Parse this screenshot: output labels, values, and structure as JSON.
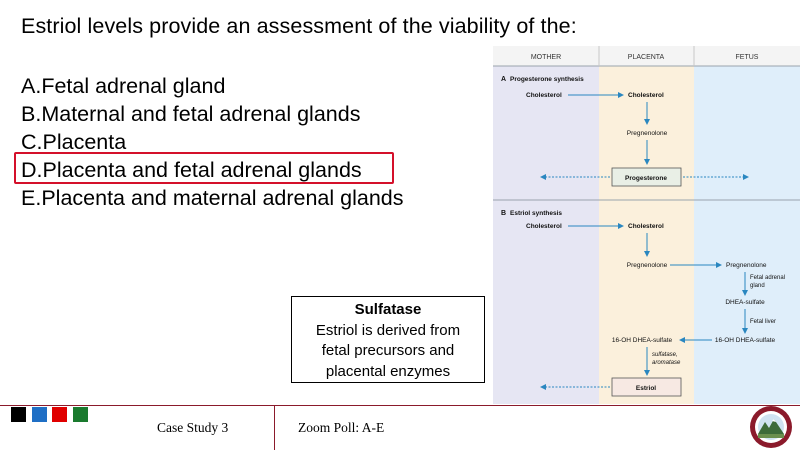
{
  "question": "Estriol levels provide an assessment of the viability of the:",
  "options": [
    {
      "letter": "A.",
      "text": "Fetal adrenal gland"
    },
    {
      "letter": "B.",
      "text": "Maternal and fetal adrenal glands"
    },
    {
      "letter": "C.",
      "text": "Placenta"
    },
    {
      "letter": "D.",
      "text": "Placenta and fetal adrenal glands"
    },
    {
      "letter": "E.",
      "text": "Placenta and maternal adrenal glands"
    }
  ],
  "highlighted_option": "D",
  "callout": {
    "title": "Sulfatase",
    "line1": "Estriol is derived from",
    "line2": "fetal precursors and",
    "line3": "placental enzymes"
  },
  "diagram": {
    "col_mother": "MOTHER",
    "col_placenta": "PLACENTA",
    "col_fetus": "FETUS",
    "panel_a": {
      "letter": "A",
      "title": "Progesterone synthesis",
      "cholesterol_left": "Cholesterol",
      "cholesterol_right": "Cholesterol",
      "pregnenolone": "Pregnenolone",
      "product": "Progesterone"
    },
    "panel_b": {
      "letter": "B",
      "title": "Estriol synthesis",
      "cholesterol_left": "Cholesterol",
      "cholesterol_right": "Cholesterol",
      "pregnenolone_placenta": "Pregnenolone",
      "pregnenolone_fetus": "Pregnenolone",
      "fetal_adrenal_line1": "Fetal adrenal",
      "fetal_adrenal_line2": "gland",
      "dhea_sulfate": "DHEA-sulfate",
      "fetal_liver": "Fetal liver",
      "oh_dhea_fetus": "16-OH DHEA-sulfate",
      "oh_dhea_placenta": "16-OH DHEA-sulfate",
      "enzyme_line1": "sulfatase,",
      "enzyme_line2": "aromatase",
      "product": "Estriol"
    }
  },
  "footer": {
    "case": "Case Study 3",
    "poll": "Zoom Poll: A-E"
  },
  "colors": {
    "highlight": "#d4102a",
    "footer_squares": [
      "#000000",
      "#1f6fc5",
      "#e00000",
      "#1a7a2e"
    ],
    "mother_column": "#e6e6f3",
    "placenta_column": "#fbf0dc",
    "fetus_column": "#dfeefa",
    "arrow": "#2a87c0"
  },
  "icons": {
    "logo": "university-seal-icon"
  }
}
